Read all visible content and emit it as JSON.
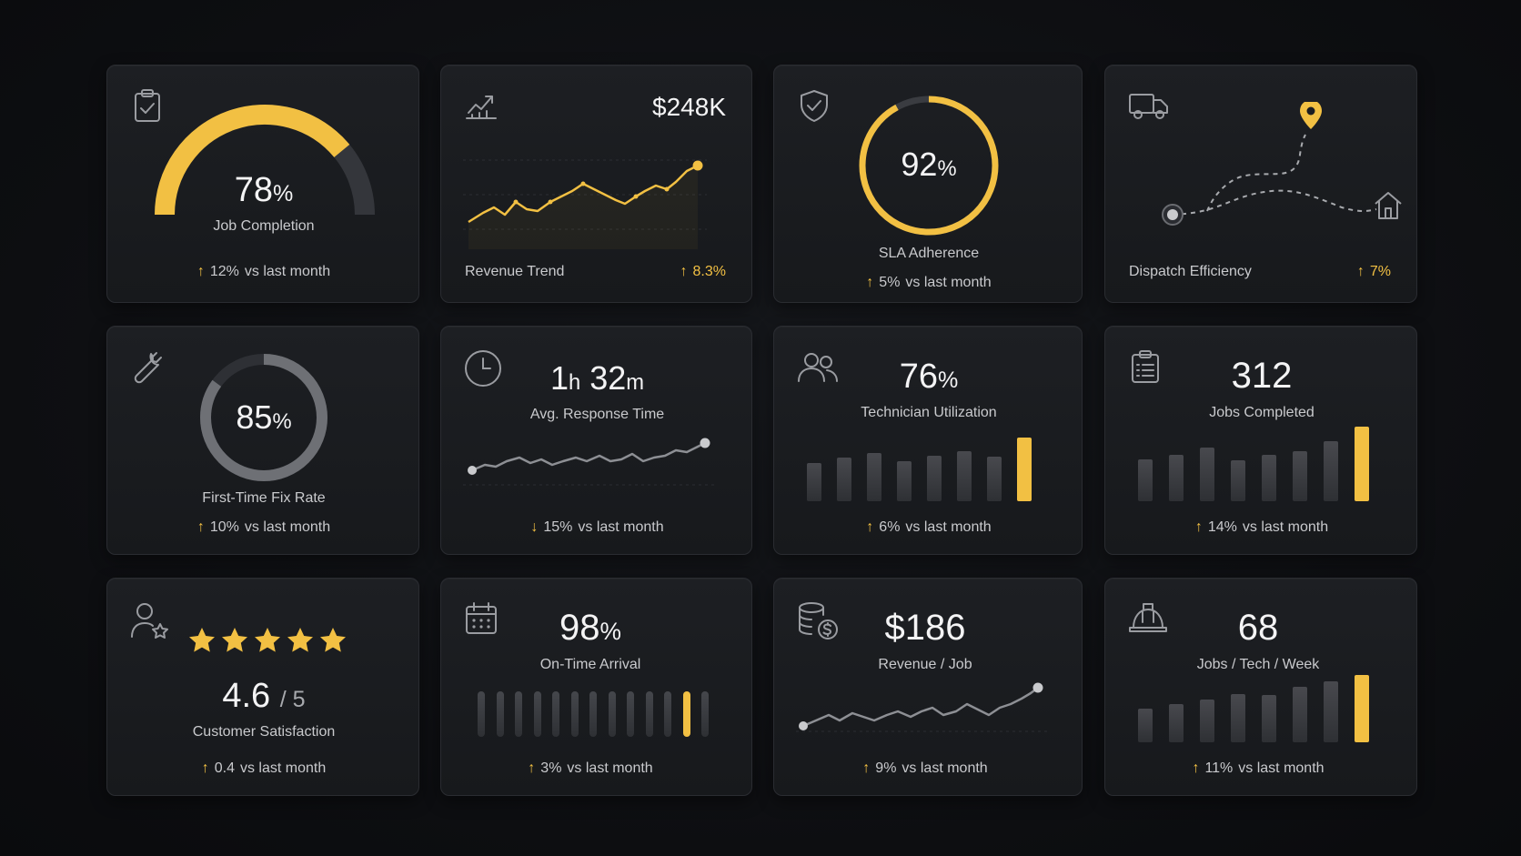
{
  "colors": {
    "accent": "#f2c043",
    "track": "#34363b",
    "bar": "#3a3c41",
    "text": "#c9cacd"
  },
  "cards": {
    "job_completion": {
      "icon": "clipboard-check-icon",
      "value": "78",
      "unit": "%",
      "label": "Job Completion",
      "delta_dir": "↑",
      "delta_val": "12%",
      "delta_text": "vs last month",
      "progress": 0.78
    },
    "revenue_trend": {
      "icon": "trend-chart-icon",
      "value": "$248K",
      "label": "Revenue Trend",
      "delta_dir": "↑",
      "delta_val": "8.3%"
    },
    "sla": {
      "icon": "shield-check-icon",
      "value": "92",
      "unit": "%",
      "label": "SLA Adherence",
      "delta_dir": "↑",
      "delta_val": "5%",
      "delta_text": "vs last month",
      "progress": 0.92
    },
    "dispatch": {
      "icon": "truck-icon",
      "label": "Dispatch Efficiency",
      "delta_dir": "↑",
      "delta_val": "7%"
    },
    "first_fix": {
      "icon": "wrench-icon",
      "value": "85",
      "unit": "%",
      "label": "First-Time Fix Rate",
      "delta_dir": "↑",
      "delta_val": "10%",
      "delta_text": "vs last month",
      "progress": 0.85
    },
    "response": {
      "icon": "clock-icon",
      "hours": "1",
      "h_unit": "h",
      "minutes": "32",
      "m_unit": "m",
      "label": "Avg. Response Time",
      "delta_dir": "↓",
      "delta_val": "15%",
      "delta_text": "vs last month"
    },
    "utilization": {
      "icon": "users-icon",
      "value": "76",
      "unit": "%",
      "label": "Technician Utilization",
      "delta_dir": "↑",
      "delta_val": "6%",
      "delta_text": "vs last month",
      "bars": [
        0.55,
        0.63,
        0.7,
        0.58,
        0.66,
        0.72,
        0.64,
        0.92
      ]
    },
    "jobs_completed": {
      "icon": "clipboard-list-icon",
      "value": "312",
      "label": "Jobs Completed",
      "delta_dir": "↑",
      "delta_val": "14%",
      "delta_text": "vs last month",
      "bars": [
        0.56,
        0.62,
        0.72,
        0.55,
        0.62,
        0.67,
        0.8,
        1.0
      ]
    },
    "satisfaction": {
      "icon": "user-star-icon",
      "value": "4.6",
      "unit": "/ 5",
      "label": "Customer Satisfaction",
      "delta_dir": "↑",
      "delta_val": "0.4",
      "delta_text": "vs last month",
      "rating": 4.6,
      "stars_max": 5
    },
    "on_time": {
      "icon": "calendar-icon",
      "value": "98",
      "unit": "%",
      "label": "On-Time Arrival",
      "delta_dir": "↑",
      "delta_val": "3%",
      "delta_text": "vs last month",
      "bars": 13,
      "highlight_index": 11
    },
    "rev_per_job": {
      "icon": "coins-dollar-icon",
      "value": "$186",
      "label": "Revenue / Job",
      "delta_dir": "↑",
      "delta_val": "9%",
      "delta_text": "vs last month"
    },
    "jobs_per_tech": {
      "icon": "hard-hat-icon",
      "value": "68",
      "label": "Jobs / Tech / Week",
      "delta_dir": "↑",
      "delta_val": "11%",
      "delta_text": "vs last month",
      "bars": [
        0.5,
        0.57,
        0.63,
        0.72,
        0.71,
        0.83,
        0.91,
        1.0
      ]
    }
  }
}
